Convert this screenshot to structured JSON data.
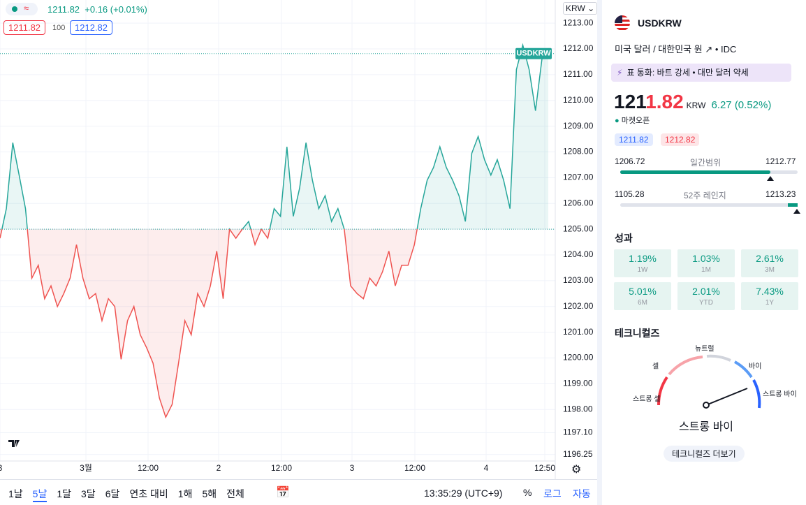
{
  "header": {
    "legend_price": "1211.82",
    "legend_change": "+0.16 (+0.01%)",
    "bid": "1211.82",
    "qty": "100",
    "ask": "1212.82",
    "currency": "KRW"
  },
  "chart_data": {
    "type": "line",
    "color_up": "#26a69a",
    "color_down": "#ef5350",
    "baseline": 1205,
    "last_price": 1211.82,
    "last_price_label": "USDKRW",
    "ylim": [
      1196.0,
      1213.9
    ],
    "yticks": [
      {
        "value": 1213,
        "label": "1213.00"
      },
      {
        "value": 1212,
        "label": "1212.00"
      },
      {
        "value": 1211,
        "label": "1211.00"
      },
      {
        "value": 1210,
        "label": "1210.00"
      },
      {
        "value": 1209,
        "label": "1209.00"
      },
      {
        "value": 1208,
        "label": "1208.00"
      },
      {
        "value": 1207,
        "label": "1207.00"
      },
      {
        "value": 1206,
        "label": "1206.00"
      },
      {
        "value": 1205,
        "label": "1205.00"
      },
      {
        "value": 1204,
        "label": "1204.00"
      },
      {
        "value": 1203,
        "label": "1203.00"
      },
      {
        "value": 1202,
        "label": "1202.00"
      },
      {
        "value": 1201,
        "label": "1201.00"
      },
      {
        "value": 1200,
        "label": "1200.00"
      },
      {
        "value": 1199,
        "label": "1199.00"
      },
      {
        "value": 1198,
        "label": "1198.00"
      },
      {
        "value": 1197.1,
        "label": "1197.10"
      },
      {
        "value": 1196.25,
        "label": "1196.25"
      }
    ],
    "x_labels": [
      "3",
      "3월",
      "12:00",
      "2",
      "12:00",
      "3",
      "12:00",
      "4",
      "12:50"
    ],
    "values": [
      1204.65,
      1205.8,
      1208.36,
      1207.1,
      1205.8,
      1203.1,
      1203.6,
      1202.3,
      1202.8,
      1202.0,
      1202.5,
      1203.1,
      1204.4,
      1203.1,
      1202.3,
      1202.5,
      1201.45,
      1202.3,
      1202.0,
      1199.95,
      1201.45,
      1202.0,
      1200.9,
      1200.4,
      1199.8,
      1198.45,
      1197.7,
      1198.2,
      1199.8,
      1201.45,
      1200.9,
      1202.5,
      1202.0,
      1202.8,
      1204.15,
      1202.3,
      1205.0,
      1204.65,
      1205.0,
      1205.3,
      1204.4,
      1205.0,
      1204.65,
      1205.8,
      1205.5,
      1208.2,
      1205.5,
      1206.6,
      1208.36,
      1206.9,
      1205.8,
      1206.3,
      1205.3,
      1205.8,
      1205.0,
      1202.8,
      1202.5,
      1202.3,
      1203.1,
      1202.8,
      1203.35,
      1204.15,
      1202.8,
      1203.6,
      1203.6,
      1204.4,
      1205.8,
      1206.9,
      1207.4,
      1208.2,
      1207.4,
      1206.9,
      1206.3,
      1205.3,
      1207.95,
      1208.6,
      1207.7,
      1207.1,
      1207.7,
      1206.9,
      1205.8,
      1211.2,
      1212.15,
      1211.2,
      1209.6,
      1211.6,
      1211.8
    ]
  },
  "toolbar": {
    "ranges": [
      "1날",
      "5날",
      "1달",
      "3달",
      "6달",
      "연초 대비",
      "1해",
      "5해",
      "전체"
    ],
    "time": "13:35:29 (UTC+9)",
    "percent": "%",
    "log": "로그",
    "auto": "자동"
  },
  "panel": {
    "symbol": "USDKRW",
    "description": "미국 달러 / 대한민국 원",
    "exchange": "IDC",
    "banner": "표 통화: 바트 강세 • 대만 달러 약세",
    "price_main": "121",
    "price_tail": "1.82",
    "currency": "KRW",
    "change": "6.27 (0.52%)",
    "status": "마켓오픈",
    "bid": "1211.82",
    "ask": "1212.82",
    "day_range": {
      "low": "1206.72",
      "label": "일간범위",
      "high": "1212.77"
    },
    "week52_range": {
      "low": "1105.28",
      "label": "52주 레인지",
      "high": "1213.23"
    },
    "performance_title": "성과",
    "performance": [
      {
        "value": "1.19%",
        "period": "1W"
      },
      {
        "value": "1.03%",
        "period": "1M"
      },
      {
        "value": "2.61%",
        "period": "3M"
      },
      {
        "value": "5.01%",
        "period": "6M"
      },
      {
        "value": "2.01%",
        "period": "YTD"
      },
      {
        "value": "7.43%",
        "period": "1Y"
      }
    ],
    "technicals_title": "테크니컬즈",
    "gauge": {
      "strong_sell": "스트롱 셀",
      "sell": "셀",
      "neutral": "뉴트럴",
      "buy": "바이",
      "strong_buy": "스트롱 바이"
    },
    "result": "스트롱 바이",
    "more_button": "테크니컬즈 더보기"
  }
}
